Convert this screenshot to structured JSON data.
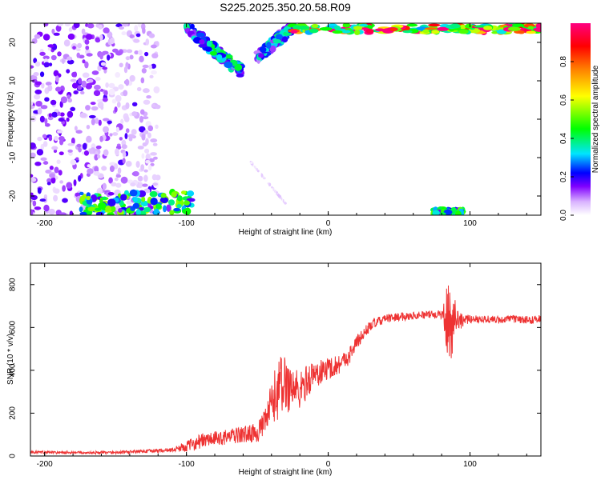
{
  "title": "S225.2025.350.20.58.R09",
  "chart_data": [
    {
      "type": "heatmap",
      "title": "S225.2025.350.20.58.R09",
      "xlabel": "Height of straight line (km)",
      "ylabel": "Frequency (Hz)",
      "xlim": [
        -210,
        150
      ],
      "ylim": [
        -25,
        25
      ],
      "xticks": [
        -200,
        -100,
        0,
        100
      ],
      "yticks": [
        -20,
        -10,
        0,
        10,
        20
      ],
      "colorbar": {
        "label": "Normalized spectral amplitude",
        "range": [
          0,
          1
        ],
        "ticks": [
          0.0,
          0.2,
          0.4,
          0.6,
          0.8
        ],
        "colormap": [
          "#ffffff",
          "#d9b3ff",
          "#8000ff",
          "#0000ff",
          "#00e5ff",
          "#00ff00",
          "#ffff00",
          "#ff8000",
          "#ff0000",
          "#ff0080"
        ]
      },
      "features": [
        {
          "name": "broadband scatter",
          "x_range": [
            -210,
            -120
          ],
          "freq_range": [
            -25,
            25
          ],
          "amplitude": 0.15
        },
        {
          "name": "descending streak upper",
          "x_range": [
            -100,
            -60
          ],
          "freq_range": [
            12,
            24
          ],
          "amplitude": 0.35
        },
        {
          "name": "ascending streak upper",
          "x_range": [
            -50,
            -25
          ],
          "freq_range": [
            16,
            24
          ],
          "amplitude": 0.3
        },
        {
          "name": "top band",
          "x_range": [
            -25,
            150
          ],
          "freq_range": [
            22.5,
            24.5
          ],
          "amplitude": 0.95
        },
        {
          "name": "bottom band",
          "x_range": [
            -175,
            -95
          ],
          "freq_range": [
            -25,
            -19
          ],
          "amplitude": 0.45
        },
        {
          "name": "faint diagonal",
          "x_range": [
            -55,
            -30
          ],
          "freq_range": [
            -22,
            -11
          ],
          "amplitude": 0.05
        },
        {
          "name": "bottom burst",
          "x_range": [
            75,
            95
          ],
          "freq_range": [
            -25,
            -23.5
          ],
          "amplitude": 0.4
        }
      ]
    },
    {
      "type": "line",
      "xlabel": "Height of straight line (km)",
      "ylabel": "SNR (10 * v/v)",
      "xlim": [
        -210,
        150
      ],
      "ylim": [
        0,
        900
      ],
      "xticks": [
        -200,
        -100,
        0,
        100
      ],
      "yticks": [
        0,
        200,
        400,
        600,
        800
      ],
      "series": [
        {
          "name": "SNR",
          "color": "#ee3333",
          "x": [
            -210,
            -180,
            -150,
            -130,
            -110,
            -100,
            -90,
            -80,
            -70,
            -60,
            -50,
            -45,
            -40,
            -35,
            -30,
            -25,
            -20,
            -15,
            -10,
            -5,
            0,
            5,
            10,
            15,
            20,
            25,
            30,
            40,
            50,
            60,
            70,
            80,
            85,
            90,
            95,
            100,
            110,
            120,
            130,
            140,
            150
          ],
          "values": [
            18,
            15,
            16,
            22,
            28,
            45,
            70,
            80,
            90,
            100,
            110,
            150,
            240,
            320,
            340,
            320,
            300,
            350,
            380,
            390,
            410,
            420,
            440,
            470,
            530,
            570,
            610,
            640,
            650,
            655,
            660,
            660,
            620,
            650,
            630,
            640,
            640,
            635,
            640,
            635,
            640
          ],
          "noise": [
            6,
            6,
            7,
            8,
            10,
            25,
            35,
            35,
            35,
            40,
            45,
            60,
            110,
            150,
            140,
            120,
            90,
            80,
            70,
            60,
            55,
            50,
            45,
            40,
            35,
            30,
            25,
            20,
            20,
            18,
            18,
            20,
            230,
            90,
            25,
            20,
            18,
            18,
            18,
            18,
            18
          ]
        }
      ]
    }
  ]
}
